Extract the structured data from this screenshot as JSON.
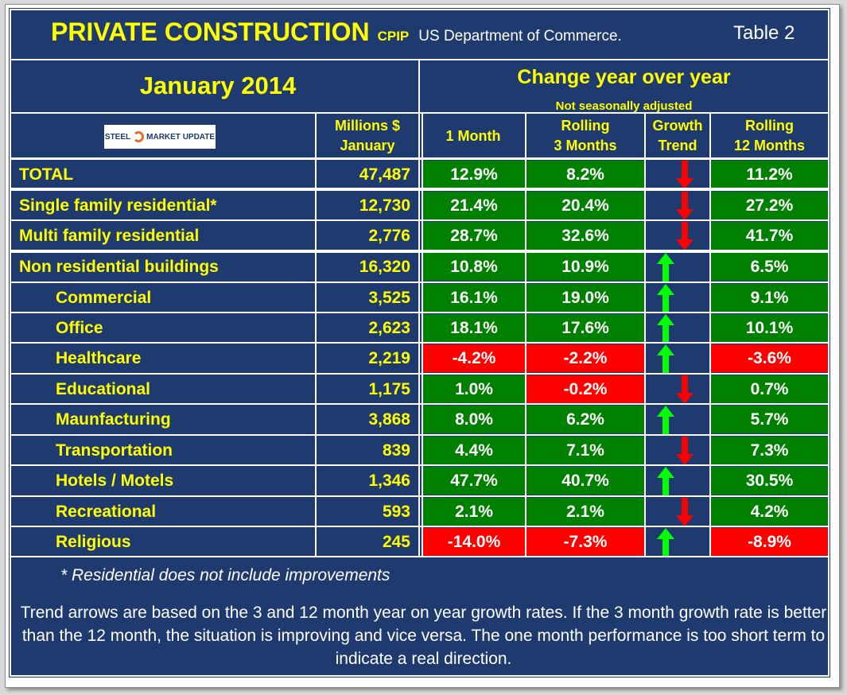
{
  "title": {
    "main": "PRIVATE CONSTRUCTION",
    "cpip": "CPIP",
    "source": "US Department of Commerce.",
    "table_no": "Table 2"
  },
  "period": "January 2014",
  "change_header": "Change year over year",
  "adjust_note": "Not seasonally adjusted",
  "logo": {
    "part1": "STEEL",
    "part2": "MARKET UPDATE"
  },
  "colors": {
    "bg": "#1e3a6e",
    "green": "#008000",
    "red": "#ff0000",
    "yellow": "#ffff00",
    "up_arrow": "#00ff00",
    "down_arrow": "#ff0000"
  },
  "columns": {
    "millions_line1": "Millions $",
    "millions_line2": "January",
    "one_month": "1 Month",
    "rolling3_line1": "Rolling",
    "rolling3_line2": "3 Months",
    "trend_line1": "Growth",
    "trend_line2": "Trend",
    "rolling12_line1": "Rolling",
    "rolling12_line2": "12 Months"
  },
  "rows": [
    {
      "label": "TOTAL",
      "indent": false,
      "millions": "47,487",
      "m1": "12.9%",
      "m1_color": "green",
      "m3": "8.2%",
      "m3_color": "green",
      "trend": "down",
      "m12": "11.2%",
      "m12_color": "green"
    },
    {
      "label": "Single family residential*",
      "indent": false,
      "millions": "12,730",
      "m1": "21.4%",
      "m1_color": "green",
      "m3": "20.4%",
      "m3_color": "green",
      "trend": "down",
      "m12": "27.2%",
      "m12_color": "green"
    },
    {
      "label": "Multi family residential",
      "indent": false,
      "millions": "2,776",
      "m1": "28.7%",
      "m1_color": "green",
      "m3": "32.6%",
      "m3_color": "green",
      "trend": "down",
      "m12": "41.7%",
      "m12_color": "green"
    },
    {
      "label": "Non residential buildings",
      "indent": false,
      "millions": "16,320",
      "m1": "10.8%",
      "m1_color": "green",
      "m3": "10.9%",
      "m3_color": "green",
      "trend": "up",
      "m12": "6.5%",
      "m12_color": "green"
    },
    {
      "label": "Commercial",
      "indent": true,
      "millions": "3,525",
      "m1": "16.1%",
      "m1_color": "green",
      "m3": "19.0%",
      "m3_color": "green",
      "trend": "up",
      "m12": "9.1%",
      "m12_color": "green"
    },
    {
      "label": "Office",
      "indent": true,
      "millions": "2,623",
      "m1": "18.1%",
      "m1_color": "green",
      "m3": "17.6%",
      "m3_color": "green",
      "trend": "up",
      "m12": "10.1%",
      "m12_color": "green"
    },
    {
      "label": "Healthcare",
      "indent": true,
      "millions": "2,219",
      "m1": "-4.2%",
      "m1_color": "red",
      "m3": "-2.2%",
      "m3_color": "red",
      "trend": "up",
      "m12": "-3.6%",
      "m12_color": "red"
    },
    {
      "label": "Educational",
      "indent": true,
      "millions": "1,175",
      "m1": "1.0%",
      "m1_color": "green",
      "m3": "-0.2%",
      "m3_color": "red",
      "trend": "down",
      "m12": "0.7%",
      "m12_color": "green"
    },
    {
      "label": "Maunfacturing",
      "indent": true,
      "millions": "3,868",
      "m1": "8.0%",
      "m1_color": "green",
      "m3": "6.2%",
      "m3_color": "green",
      "trend": "up",
      "m12": "5.7%",
      "m12_color": "green"
    },
    {
      "label": "Transportation",
      "indent": true,
      "millions": "839",
      "m1": "4.4%",
      "m1_color": "green",
      "m3": "7.1%",
      "m3_color": "green",
      "trend": "down",
      "m12": "7.3%",
      "m12_color": "green"
    },
    {
      "label": "Hotels / Motels",
      "indent": true,
      "millions": "1,346",
      "m1": "47.7%",
      "m1_color": "green",
      "m3": "40.7%",
      "m3_color": "green",
      "trend": "up",
      "m12": "30.5%",
      "m12_color": "green"
    },
    {
      "label": "Recreational",
      "indent": true,
      "millions": "593",
      "m1": "2.1%",
      "m1_color": "green",
      "m3": "2.1%",
      "m3_color": "green",
      "trend": "down",
      "m12": "4.2%",
      "m12_color": "green"
    },
    {
      "label": "Religious",
      "indent": true,
      "millions": "245",
      "m1": "-14.0%",
      "m1_color": "red",
      "m3": "-7.3%",
      "m3_color": "red",
      "trend": "up",
      "m12": "-8.9%",
      "m12_color": "red"
    }
  ],
  "footnote": "* Residential does not include improvements",
  "explanation": "Trend arrows are based on the 3 and 12 month year on year growth rates. If the 3 month growth rate is better than the 12 month, the situation is improving and vice versa. The one month performance is too short term to indicate a real direction."
}
